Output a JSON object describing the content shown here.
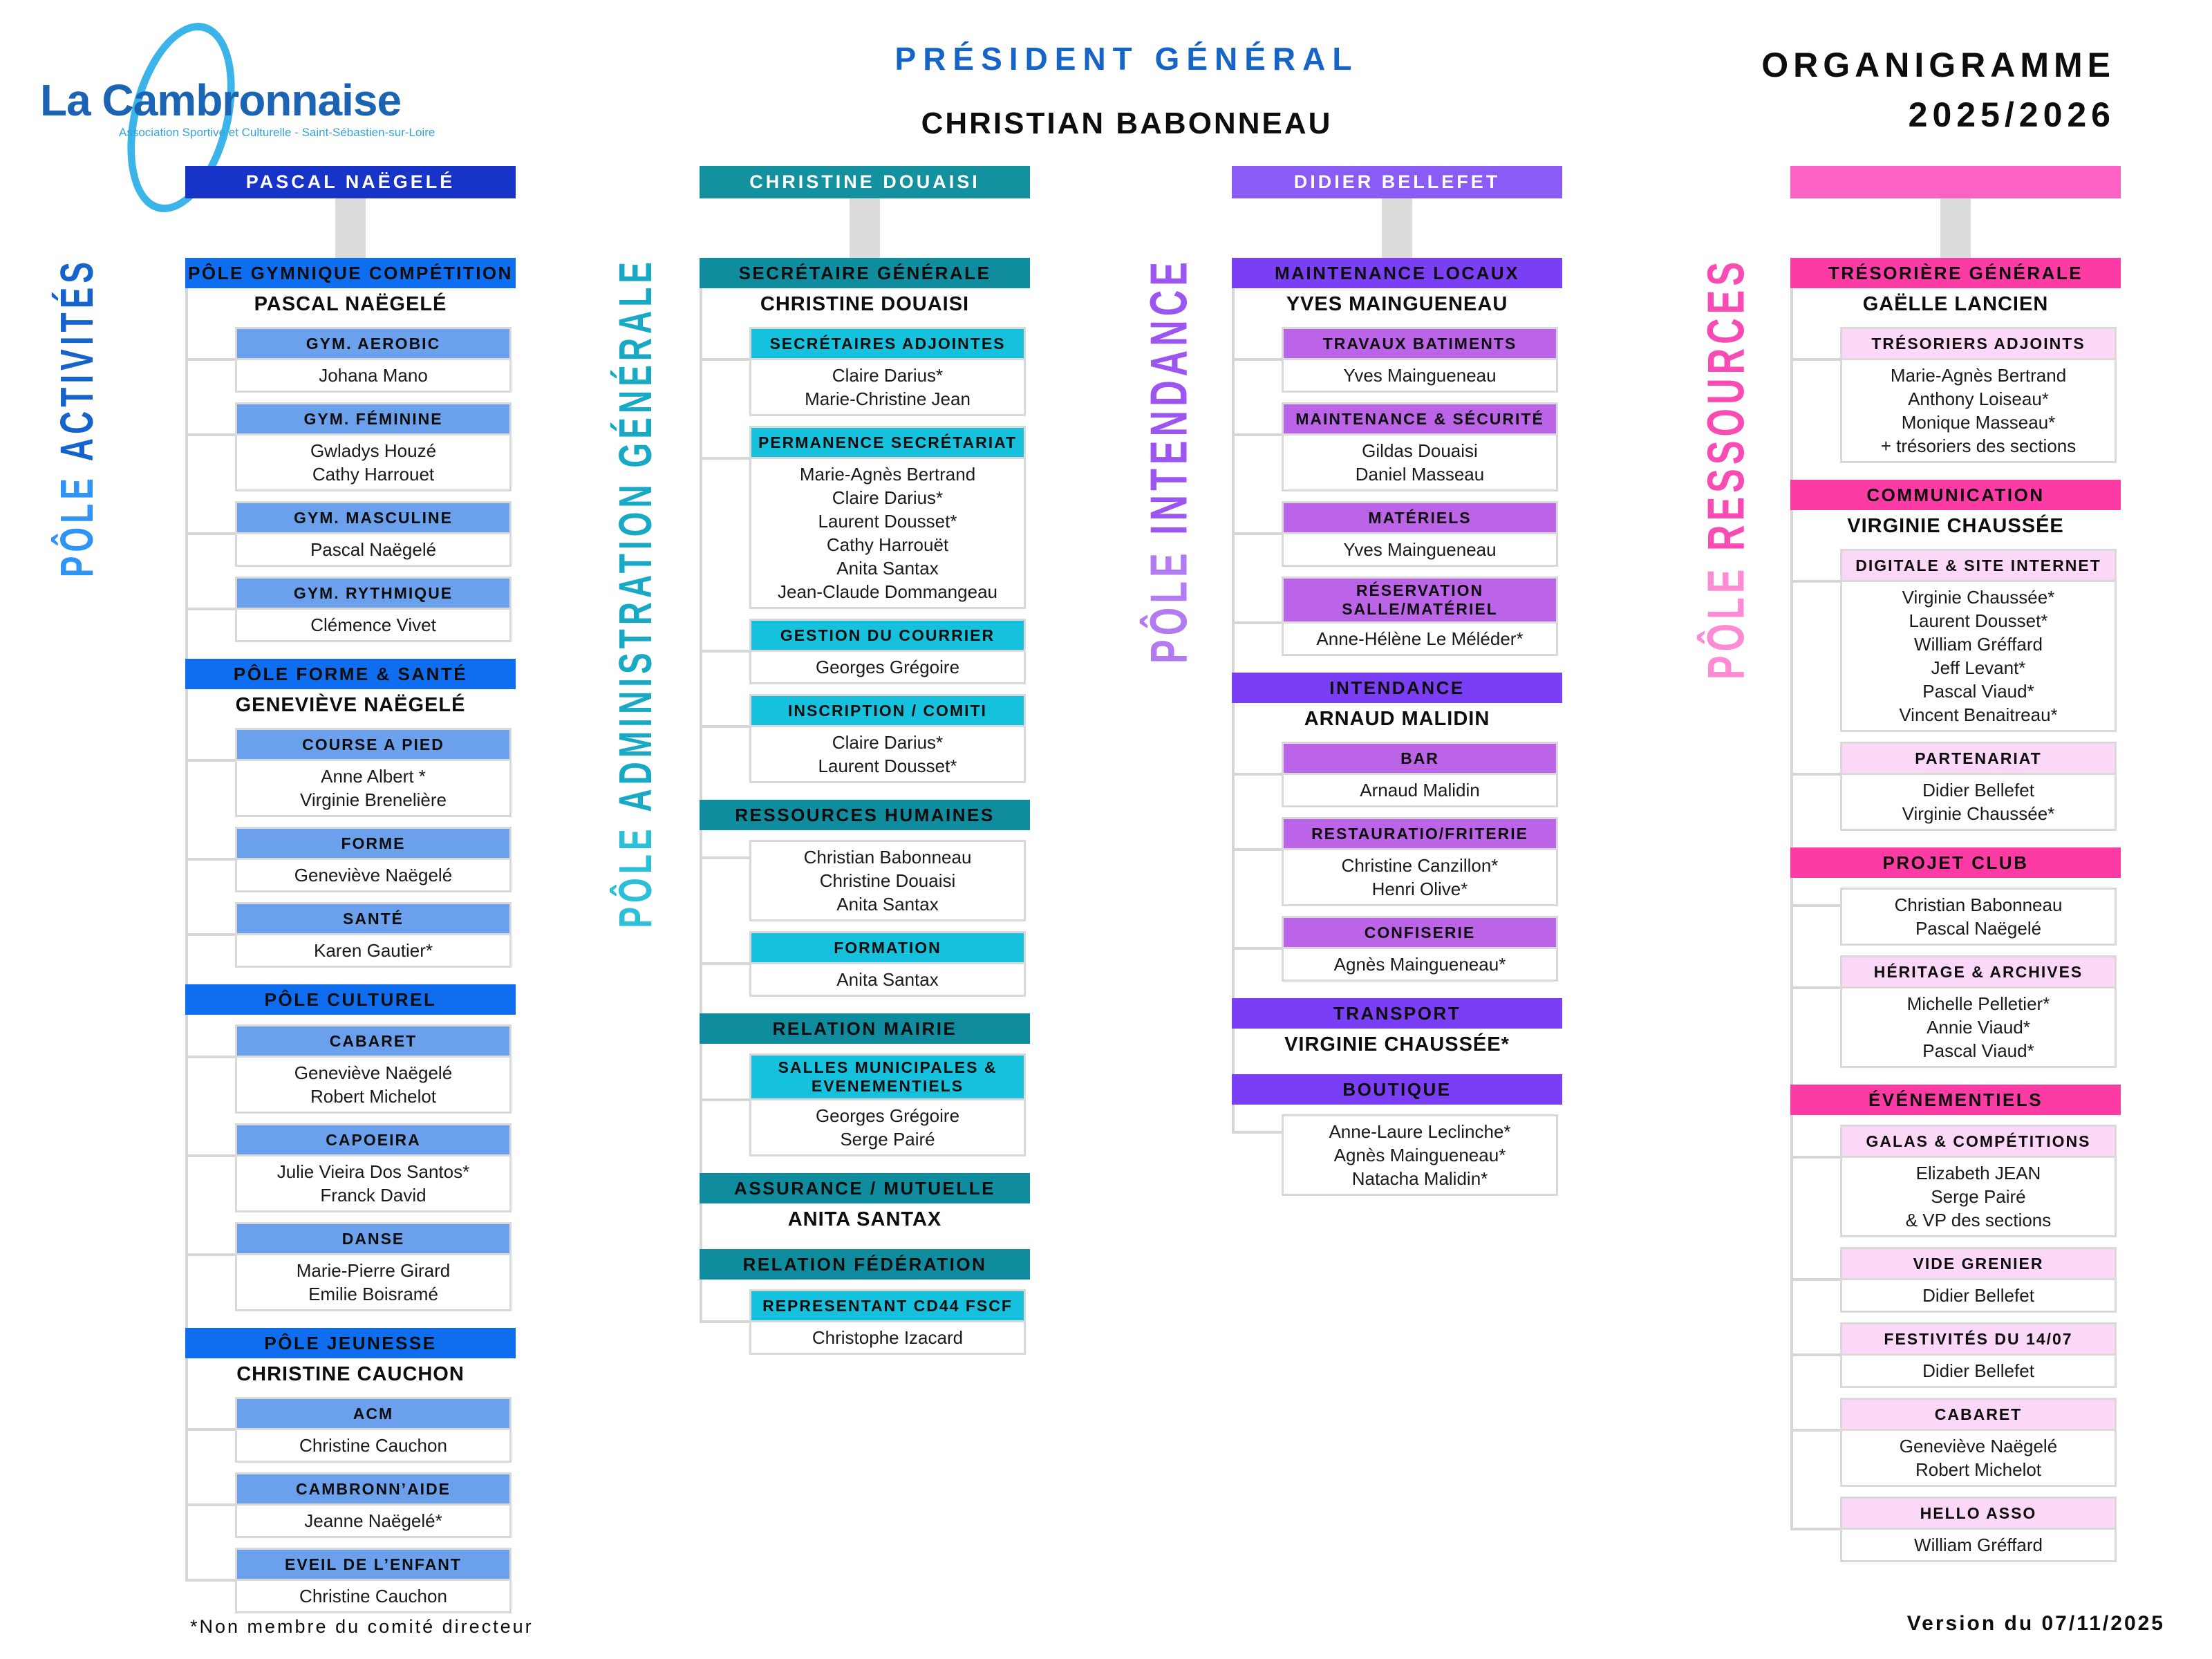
{
  "header": {
    "logo": {
      "title": "La Cambronnaise",
      "subtitle": "Association Sportive et Culturelle - Saint-Sébastien-sur-Loire"
    },
    "president": {
      "title": "PRÉSIDENT GÉNÉRAL",
      "name": "CHRISTIAN BABONNEAU"
    },
    "doc_title": {
      "line1": "ORGANIGRAMME",
      "line2": "2025/2026"
    }
  },
  "footer": {
    "note": "*Non membre du comité directeur",
    "version": "Version du 07/11/2025"
  },
  "columns": [
    {
      "pole_label": {
        "word1": "PÔLE",
        "rest": "ACTIVITÉS"
      },
      "head_name": "PASCAL NAËGELÉ",
      "colors": {
        "head": "#1733c8",
        "section": "#0f6ef0",
        "unit": "#6ba1ec",
        "label_light": "#2e94f5",
        "label_dark": "#1563cd"
      },
      "blocks": [
        {
          "type": "section",
          "label": "PÔLE GYMNIQUE COMPÉTITION",
          "manager": "PASCAL NAËGELÉ"
        },
        {
          "type": "unit",
          "label": "GYM. AEROBIC",
          "members": [
            "Johana Mano"
          ]
        },
        {
          "type": "unit",
          "label": "GYM. FÉMININE",
          "members": [
            "Gwladys Houzé",
            "Cathy Harrouet"
          ]
        },
        {
          "type": "unit",
          "label": "GYM. MASCULINE",
          "members": [
            "Pascal Naëgelé"
          ]
        },
        {
          "type": "unit",
          "label": "GYM. RYTHMIQUE",
          "members": [
            "Clémence Vivet"
          ]
        },
        {
          "type": "section",
          "label": "PÔLE FORME & SANTÉ",
          "manager": "GENEVIÈVE NAËGELÉ"
        },
        {
          "type": "unit",
          "label": "COURSE A PIED",
          "members": [
            "Anne Albert *",
            "Virginie Brenelière"
          ]
        },
        {
          "type": "unit",
          "label": "FORME",
          "members": [
            "Geneviève Naëgelé"
          ]
        },
        {
          "type": "unit",
          "label": "SANTÉ",
          "members": [
            "Karen Gautier*"
          ]
        },
        {
          "type": "section",
          "label": "PÔLE CULTUREL"
        },
        {
          "type": "unit",
          "label": "CABARET",
          "members": [
            "Geneviève Naëgelé",
            "Robert Michelot"
          ]
        },
        {
          "type": "unit",
          "label": "CAPOEIRA",
          "members": [
            "Julie Vieira Dos Santos*",
            "Franck David"
          ]
        },
        {
          "type": "unit",
          "label": "DANSE",
          "members": [
            "Marie-Pierre Girard",
            "Emilie Boisramé"
          ]
        },
        {
          "type": "section",
          "label": "PÔLE JEUNESSE",
          "manager": "CHRISTINE CAUCHON"
        },
        {
          "type": "unit",
          "label": "ACM",
          "members": [
            "Christine Cauchon"
          ]
        },
        {
          "type": "unit",
          "label": "CAMBRONN’AIDE",
          "members": [
            "Jeanne Naëgelé*"
          ]
        },
        {
          "type": "unit",
          "label": "EVEIL DE L’ENFANT",
          "members": [
            "Christine Cauchon"
          ]
        }
      ]
    },
    {
      "pole_label": {
        "word1": "PÔLE",
        "rest": "ADMINISTRATION GÉNÉRALE"
      },
      "head_name": "CHRISTINE DOUAISI",
      "colors": {
        "head": "#13919e",
        "section": "#0f8c9e",
        "unit": "#15c1dd",
        "label_light": "#2cc0d8",
        "label_dark": "#18a9c4"
      },
      "blocks": [
        {
          "type": "section",
          "label": "SECRÉTAIRE GÉNÉRALE",
          "manager": "CHRISTINE DOUAISI"
        },
        {
          "type": "unit",
          "label": "SECRÉTAIRES ADJOINTES",
          "members": [
            "Claire Darius*",
            "Marie-Christine Jean"
          ]
        },
        {
          "type": "unit",
          "label": "PERMANENCE SECRÉTARIAT",
          "members": [
            "Marie-Agnès Bertrand",
            "Claire Darius*",
            "Laurent Dousset*",
            "Cathy Harrouët",
            "Anita Santax",
            "Jean-Claude Dommangeau"
          ]
        },
        {
          "type": "unit",
          "label": "GESTION DU COURRIER",
          "members": [
            "Georges Grégoire"
          ]
        },
        {
          "type": "unit",
          "label": "INSCRIPTION / COMITI",
          "members": [
            "Claire Darius*",
            "Laurent Dousset*"
          ]
        },
        {
          "type": "section",
          "label": "RESSOURCES HUMAINES"
        },
        {
          "type": "members",
          "members": [
            "Christian Babonneau",
            "Christine Douaisi",
            "Anita Santax"
          ]
        },
        {
          "type": "unit",
          "label": "FORMATION",
          "members": [
            "Anita Santax"
          ]
        },
        {
          "type": "section",
          "label": "RELATION MAIRIE"
        },
        {
          "type": "unit",
          "label": "SALLES MUNICIPALES & EVENEMENTIELS",
          "members": [
            "Georges Grégoire",
            "Serge Pairé"
          ]
        },
        {
          "type": "section",
          "label": "ASSURANCE / MUTUELLE",
          "manager": "ANITA SANTAX"
        },
        {
          "type": "section",
          "label": "RELATION FÉDÉRATION"
        },
        {
          "type": "unit",
          "label": "REPRESENTANT CD44 FSCF",
          "members": [
            "Christophe Izacard"
          ]
        }
      ]
    },
    {
      "pole_label": {
        "word1": "PÔLE",
        "rest": "INTENDANCE"
      },
      "head_name": "DIDIER BELLEFET",
      "colors": {
        "head": "#8a5cf5",
        "section": "#7a3ef5",
        "unit": "#bc64e8",
        "label_light": "#b27bf2",
        "label_dark": "#9d55f2"
      },
      "blocks": [
        {
          "type": "section",
          "label": "MAINTENANCE LOCAUX",
          "manager": "YVES MAINGUENEAU"
        },
        {
          "type": "unit",
          "label": "TRAVAUX BATIMENTS",
          "members": [
            "Yves Maingueneau"
          ]
        },
        {
          "type": "unit",
          "label": "MAINTENANCE & SÉCURITÉ",
          "members": [
            "Gildas Douaisi",
            "Daniel Masseau"
          ]
        },
        {
          "type": "unit",
          "label": "MATÉRIELS",
          "members": [
            "Yves Maingueneau"
          ]
        },
        {
          "type": "unit",
          "label": "RÉSERVATION SALLE/MATÉRIEL",
          "members": [
            "Anne-Hélène Le Méléder*"
          ]
        },
        {
          "type": "section",
          "label": "INTENDANCE",
          "manager": "ARNAUD MALIDIN"
        },
        {
          "type": "unit",
          "label": "BAR",
          "members": [
            "Arnaud Malidin"
          ]
        },
        {
          "type": "unit",
          "label": "RESTAURATIO/FRITERIE",
          "members": [
            "Christine Canzillon*",
            "Henri Olive*"
          ]
        },
        {
          "type": "unit",
          "label": "CONFISERIE",
          "members": [
            "Agnès Maingueneau*"
          ]
        },
        {
          "type": "section",
          "label": "TRANSPORT",
          "manager": "VIRGINIE CHAUSSÉE*"
        },
        {
          "type": "section",
          "label": "BOUTIQUE"
        },
        {
          "type": "members",
          "members": [
            "Anne-Laure Leclinche*",
            "Agnès Maingueneau*",
            "Natacha Malidin*"
          ]
        }
      ]
    },
    {
      "pole_label": {
        "word1": "PÔLE",
        "rest": "RESSOURCES"
      },
      "head_name": "",
      "colors": {
        "head": "#fc62c3",
        "section": "#fc3ca4",
        "unit": "#fbd8f7",
        "label_light": "#fc8ad4",
        "label_dark": "#f84cb4"
      },
      "blocks": [
        {
          "type": "section",
          "label": "TRÉSORIÈRE GÉNÉRALE",
          "manager": "GAËLLE LANCIEN"
        },
        {
          "type": "unit",
          "label": "TRÉSORIERS ADJOINTS",
          "members": [
            "Marie-Agnès Bertrand",
            "Anthony Loiseau*",
            "Monique Masseau*",
            "+ trésoriers des sections"
          ]
        },
        {
          "type": "section",
          "label": "COMMUNICATION",
          "manager": "VIRGINIE CHAUSSÉE"
        },
        {
          "type": "unit",
          "label": "DIGITALE & SITE INTERNET",
          "members": [
            "Virginie Chaussée*",
            "Laurent Dousset*",
            "William Gréffard",
            "Jeff Levant*",
            "Pascal Viaud*",
            "Vincent Benaitreau*"
          ]
        },
        {
          "type": "unit",
          "label": "PARTENARIAT",
          "members": [
            "Didier Bellefet",
            "Virginie Chaussée*"
          ]
        },
        {
          "type": "section",
          "label": "PROJET CLUB"
        },
        {
          "type": "members",
          "members": [
            "Christian Babonneau",
            "Pascal Naëgelé"
          ]
        },
        {
          "type": "unit",
          "label": "HÉRITAGE & ARCHIVES",
          "members": [
            "Michelle Pelletier*",
            "Annie Viaud*",
            "Pascal Viaud*"
          ]
        },
        {
          "type": "section",
          "label": "ÉVÉNEMENTIELS"
        },
        {
          "type": "unit",
          "label": "GALAS & COMPÉTITIONS",
          "members": [
            "Elizabeth JEAN",
            "Serge Pairé",
            "& VP des sections"
          ]
        },
        {
          "type": "unit",
          "label": "VIDE GRENIER",
          "members": [
            "Didier Bellefet"
          ]
        },
        {
          "type": "unit",
          "label": "FESTIVITÉS DU 14/07",
          "members": [
            "Didier Bellefet"
          ]
        },
        {
          "type": "unit",
          "label": "CABARET",
          "members": [
            "Geneviève Naëgelé",
            "Robert Michelot"
          ]
        },
        {
          "type": "unit",
          "label": "HELLO ASSO",
          "members": [
            "William Gréffard"
          ]
        }
      ]
    }
  ]
}
